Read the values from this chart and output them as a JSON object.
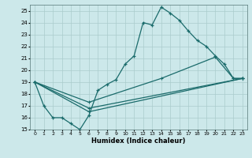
{
  "title": "",
  "xlabel": "Humidex (Indice chaleur)",
  "background_color": "#cce8ea",
  "line_color": "#1a6b6b",
  "grid_color": "#aacccc",
  "xlim": [
    -0.5,
    23.5
  ],
  "ylim": [
    15,
    25.5
  ],
  "xticks": [
    0,
    1,
    2,
    3,
    4,
    5,
    6,
    7,
    8,
    9,
    10,
    11,
    12,
    13,
    14,
    15,
    16,
    17,
    18,
    19,
    20,
    21,
    22,
    23
  ],
  "yticks": [
    15,
    16,
    17,
    18,
    19,
    20,
    21,
    22,
    23,
    24,
    25
  ],
  "lines": [
    {
      "x": [
        0,
        1,
        2,
        3,
        4,
        5,
        6,
        7,
        8,
        9,
        10,
        11,
        12,
        13,
        14,
        15,
        16,
        17,
        18,
        19,
        20,
        21,
        22,
        23
      ],
      "y": [
        19,
        17,
        16,
        16,
        15.5,
        15,
        16.2,
        18.3,
        18.8,
        19.2,
        20.5,
        21.2,
        24.0,
        23.8,
        25.3,
        24.8,
        24.2,
        23.3,
        22.5,
        22.0,
        21.2,
        20.5,
        19.3,
        19.3
      ]
    },
    {
      "x": [
        0,
        6,
        14,
        20,
        22,
        23
      ],
      "y": [
        19,
        17.3,
        19.3,
        21.1,
        19.3,
        19.3
      ]
    },
    {
      "x": [
        0,
        6,
        23
      ],
      "y": [
        19,
        16.8,
        19.3
      ]
    },
    {
      "x": [
        0,
        6,
        23
      ],
      "y": [
        19,
        16.5,
        19.3
      ]
    }
  ]
}
